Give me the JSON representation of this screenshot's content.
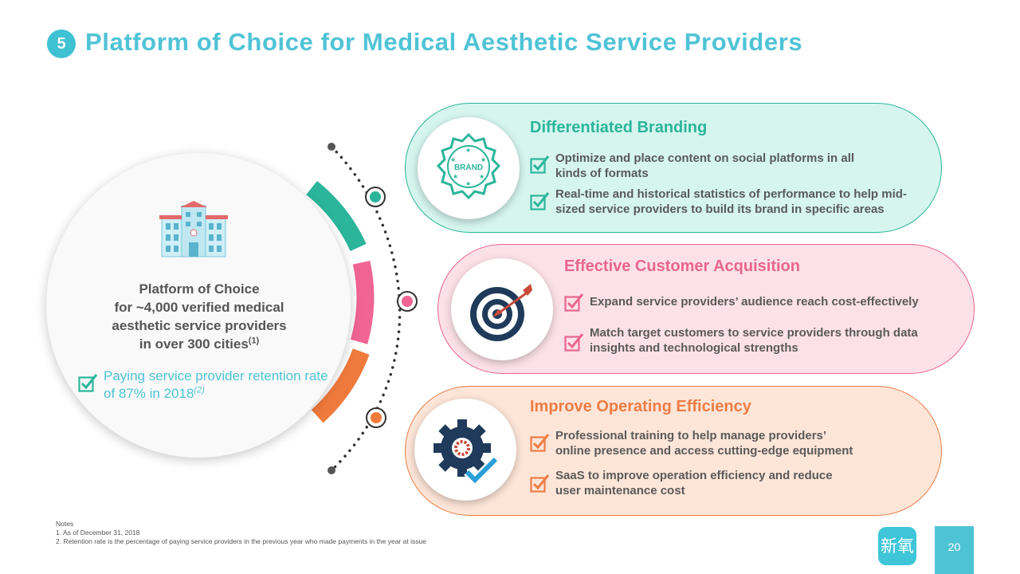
{
  "header": {
    "section_number": "5",
    "title": "Platform of Choice for Medical Aesthetic Service Providers"
  },
  "platform": {
    "line1": "Platform of Choice",
    "line2": "for ~4,000 verified medical",
    "line3": "aesthetic service providers",
    "line4": "in over 300 cities",
    "line4_note": "(1)",
    "retention_text": "Paying service provider retention rate of 87% in 2018",
    "retention_note": "(2)"
  },
  "sections": [
    {
      "title": "Differentiated Branding",
      "icon": "brand-badge-icon",
      "icon_label": "BRAND",
      "bullets": [
        [
          "Optimize and place content on social platforms in all",
          "kinds of formats"
        ],
        [
          "Real-time and historical statistics of performance to help mid-",
          "sized service providers to build its brand in specific areas"
        ]
      ]
    },
    {
      "title": "Effective Customer Acquisition",
      "icon": "target-icon",
      "bullets": [
        [
          "Expand service providers’ audience reach cost-effectively"
        ],
        [
          "Match target customers to service providers through data",
          "insights and technological strengths"
        ]
      ]
    },
    {
      "title": "Improve Operating Efficiency",
      "icon": "gear-check-icon",
      "bullets": [
        [
          "Professional training to help manage providers’",
          "online presence and access cutting-edge equipment"
        ],
        [
          "SaaS to improve operation efficiency and reduce",
          "user maintenance cost"
        ]
      ]
    }
  ],
  "colors": {
    "teal": "#2bb59a",
    "pink": "#e8668d",
    "orange": "#ee7d45",
    "title_blue": "#4fc3d6"
  },
  "footer": {
    "notes_heading": "Notes",
    "note1": "1. As of December 31, 2018",
    "note2": "2. Retention rate is the percentage of paying service providers in the previous year who made payments in the year at issue",
    "logo_text": "新氧",
    "page_number": "20"
  }
}
